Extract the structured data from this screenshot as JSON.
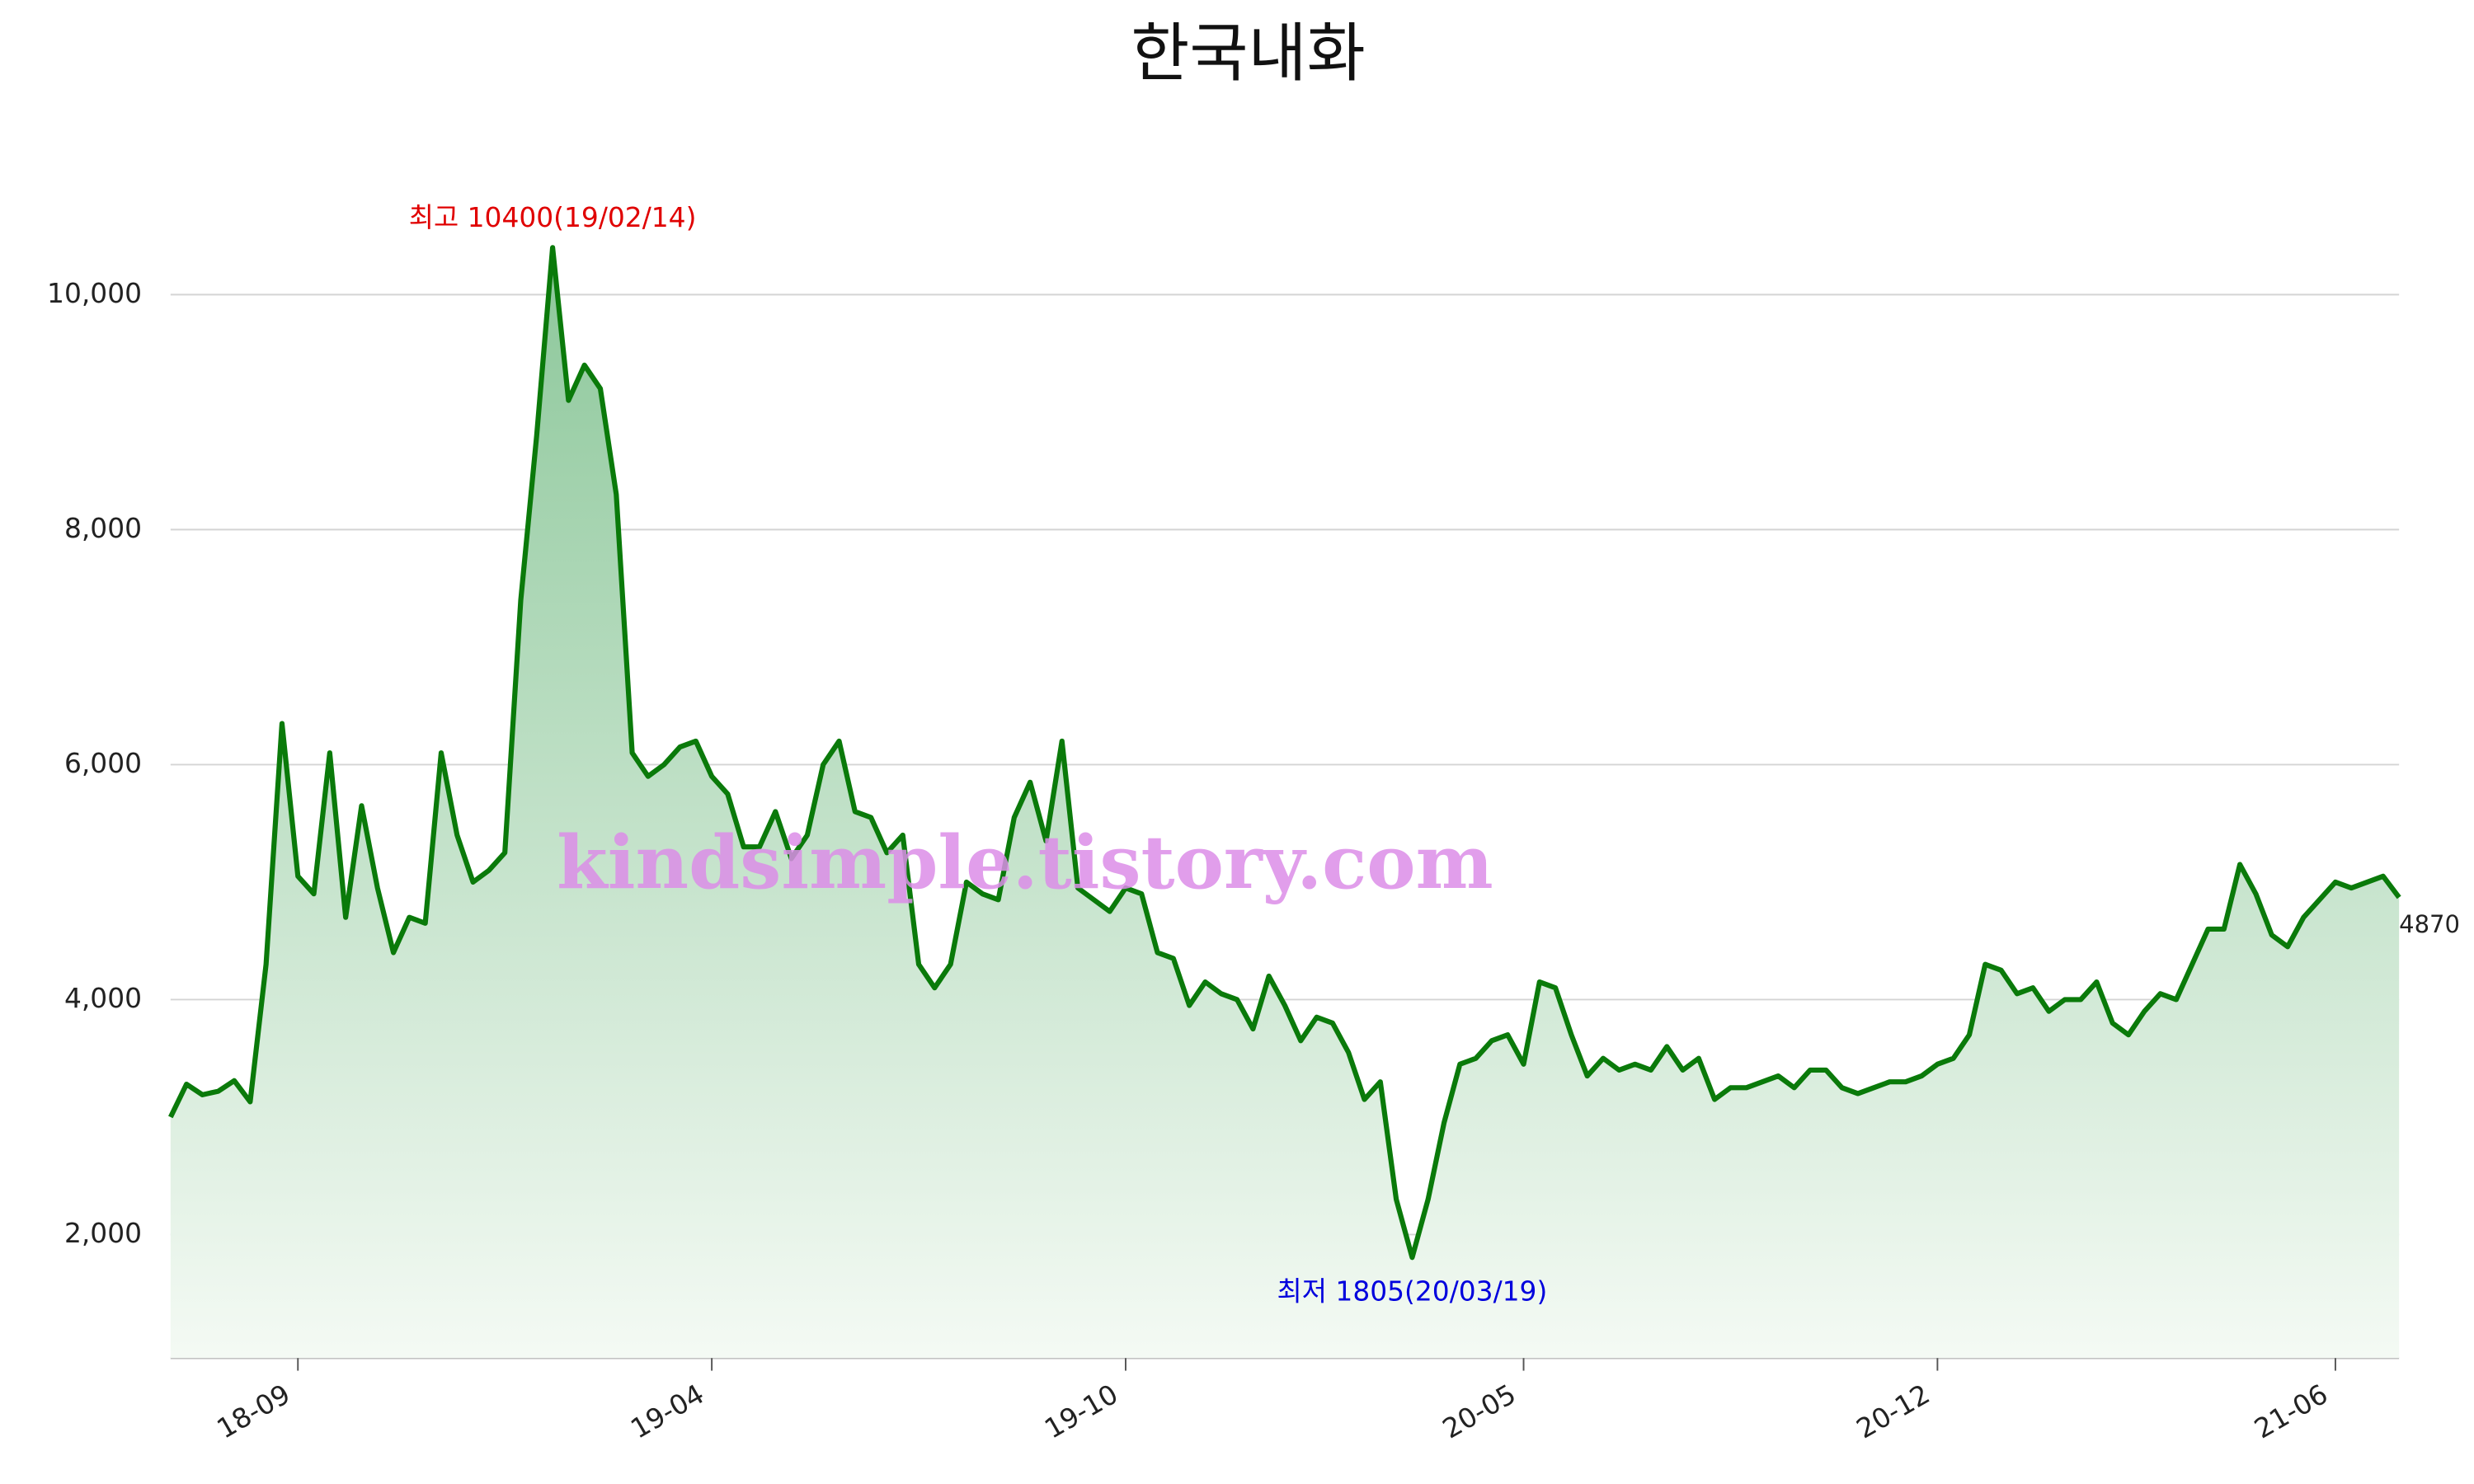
{
  "chart_data": {
    "type": "line",
    "title": "한국내화",
    "watermark": "kindsimple.tistory.com",
    "annotations": {
      "high": "최고 10400(19/02/14)",
      "low": "최저 1805(20/03/19)"
    },
    "x": [
      "18-07",
      "18-07",
      "18-07",
      "18-07",
      "18-07",
      "18-08",
      "18-08",
      "18-08",
      "18-09",
      "18-09",
      "18-09",
      "18-09",
      "18-10",
      "18-10",
      "18-10",
      "18-10",
      "18-11",
      "18-11",
      "18-11",
      "18-12",
      "18-12",
      "18-12",
      "19-01",
      "19-01",
      "19-02",
      "19-02",
      "19-02",
      "19-02",
      "19-03",
      "19-03",
      "19-03",
      "19-03",
      "19-03",
      "19-03",
      "19-04",
      "19-04",
      "19-04",
      "19-04",
      "19-04",
      "19-05",
      "19-05",
      "19-05",
      "19-05",
      "19-06",
      "19-06",
      "19-06",
      "19-06",
      "19-07",
      "19-07",
      "19-07",
      "19-07",
      "19-08",
      "19-08",
      "19-08",
      "19-08",
      "19-08",
      "19-09",
      "19-09",
      "19-09",
      "19-09",
      "19-10",
      "19-10",
      "19-10",
      "19-10",
      "19-11",
      "19-11",
      "19-11",
      "19-12",
      "19-12",
      "19-12",
      "19-12",
      "20-01",
      "20-01",
      "20-01",
      "20-01",
      "20-02",
      "20-02",
      "20-03",
      "20-03",
      "20-03",
      "20-03",
      "20-04",
      "20-04",
      "20-04",
      "20-04",
      "20-05",
      "20-05",
      "20-05",
      "20-05",
      "20-06",
      "20-06",
      "20-06",
      "20-06",
      "20-07",
      "20-07",
      "20-07",
      "20-08",
      "20-08",
      "20-08",
      "20-08",
      "20-09",
      "20-09",
      "20-09",
      "20-09",
      "20-10",
      "20-10",
      "20-10",
      "20-11",
      "20-11",
      "20-11",
      "20-11",
      "20-12",
      "20-12",
      "20-12",
      "20-12",
      "21-01",
      "21-01",
      "21-01",
      "21-01",
      "21-01",
      "21-02",
      "21-02",
      "21-02",
      "21-02",
      "21-03",
      "21-03",
      "21-03",
      "21-03",
      "21-04",
      "21-04",
      "21-04",
      "21-04",
      "21-05",
      "21-05",
      "21-05",
      "21-05",
      "21-06",
      "21-06",
      "21-06",
      "21-06",
      "21-06"
    ],
    "series": [
      {
        "color": "#0a7a0a",
        "values": [
          3000,
          3280,
          3190,
          3220,
          3310,
          3130,
          4300,
          6350,
          5050,
          4900,
          6100,
          4700,
          5650,
          4950,
          4400,
          4700,
          4650,
          6100,
          5400,
          5000,
          5100,
          5250,
          7400,
          8800,
          10400,
          9100,
          9400,
          9200,
          8300,
          6100,
          5900,
          6000,
          6150,
          6200,
          5900,
          5750,
          5300,
          5300,
          5600,
          5200,
          5400,
          6000,
          6200,
          5600,
          5550,
          5250,
          5400,
          4300,
          4100,
          4300,
          5000,
          4900,
          4850,
          5550,
          5850,
          5350,
          6200,
          4950,
          4850,
          4750,
          4950,
          4900,
          4400,
          4350,
          3950,
          4150,
          4050,
          4000,
          3750,
          4200,
          3950,
          3650,
          3850,
          3800,
          3550,
          3150,
          3300,
          2300,
          1805,
          2300,
          2950,
          3450,
          3500,
          3650,
          3700,
          3450,
          4150,
          4100,
          3700,
          3350,
          3500,
          3400,
          3450,
          3400,
          3600,
          3400,
          3500,
          3150,
          3250,
          3250,
          3300,
          3350,
          3250,
          3400,
          3400,
          3250,
          3200,
          3250,
          3300,
          3300,
          3350,
          3450,
          3500,
          3700,
          4300,
          4250,
          4050,
          4100,
          3900,
          4000,
          4000,
          4150,
          3800,
          3700,
          3900,
          4050,
          4000,
          4300,
          4600,
          4600,
          5150,
          4900,
          4550,
          4450,
          4700,
          4850,
          5000,
          4950,
          5000,
          5050,
          4870
        ]
      }
    ],
    "ylim": [
      950,
      11150
    ],
    "yticks": [
      {
        "value": 2000,
        "label": "2,000"
      },
      {
        "value": 4000,
        "label": "4,000"
      },
      {
        "value": 6000,
        "label": "6,000"
      },
      {
        "value": 8000,
        "label": "8,000"
      },
      {
        "value": 10000,
        "label": "10,000"
      }
    ],
    "xticks": [
      "18-09",
      "19-04",
      "19-10",
      "20-05",
      "20-12",
      "21-06"
    ],
    "grid": true,
    "high_color": "#e00000",
    "low_color": "#0000dd",
    "fill_top": "#8cc79a",
    "fill_bottom": "#f4faf4"
  }
}
